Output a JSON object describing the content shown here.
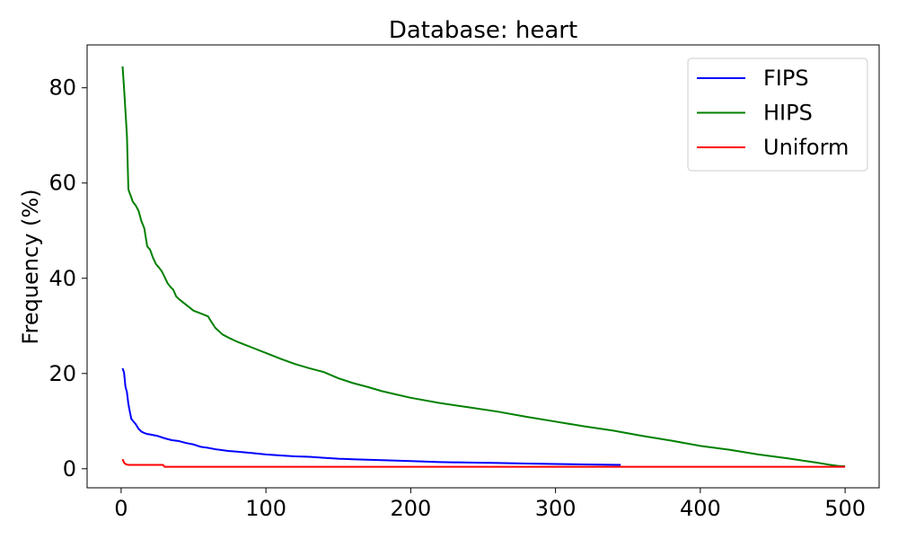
{
  "chart_data": {
    "type": "line",
    "title": "Database: heart",
    "xlabel": "",
    "ylabel": "Frequency (%)",
    "xlim": [
      -23.5,
      523.5
    ],
    "ylim": [
      -4,
      89
    ],
    "xticks": [
      0,
      100,
      200,
      300,
      400,
      500
    ],
    "yticks": [
      0,
      20,
      40,
      60,
      80
    ],
    "grid": false,
    "legend_position": "top-right",
    "series": [
      {
        "name": "FIPS",
        "color": "#0000ff",
        "x": [
          1,
          2,
          3,
          4,
          5,
          6,
          7,
          8,
          10,
          12,
          14,
          16,
          18,
          20,
          25,
          30,
          35,
          40,
          45,
          50,
          55,
          60,
          65,
          70,
          75,
          80,
          90,
          100,
          110,
          120,
          130,
          140,
          150,
          160,
          170,
          180,
          190,
          200,
          220,
          240,
          260,
          280,
          300,
          320,
          345
        ],
        "y": [
          21.1,
          20.2,
          17.2,
          16.1,
          13.6,
          12.0,
          10.5,
          10.1,
          9.4,
          8.4,
          7.8,
          7.5,
          7.3,
          7.2,
          6.9,
          6.4,
          6.0,
          5.8,
          5.4,
          5.1,
          4.6,
          4.4,
          4.1,
          3.9,
          3.7,
          3.6,
          3.3,
          3.0,
          2.8,
          2.6,
          2.5,
          2.3,
          2.1,
          2.0,
          1.9,
          1.8,
          1.7,
          1.6,
          1.4,
          1.3,
          1.2,
          1.1,
          1.0,
          0.9,
          0.8
        ]
      },
      {
        "name": "HIPS",
        "color": "#008000",
        "x": [
          1,
          2,
          3,
          4,
          5,
          6,
          7,
          8,
          10,
          12,
          14,
          16,
          18,
          20,
          22,
          24,
          26,
          28,
          30,
          32,
          34,
          36,
          38,
          40,
          45,
          50,
          55,
          60,
          62,
          65,
          70,
          75,
          80,
          90,
          100,
          110,
          120,
          130,
          140,
          150,
          160,
          170,
          180,
          190,
          200,
          220,
          240,
          260,
          280,
          300,
          320,
          340,
          360,
          380,
          400,
          420,
          440,
          460,
          480,
          490,
          495,
          500
        ],
        "y": [
          84.5,
          80.0,
          75.0,
          70.0,
          58.7,
          57.8,
          57.0,
          56.1,
          55.3,
          54.2,
          52.0,
          50.5,
          46.7,
          46.0,
          44.3,
          43.0,
          42.3,
          41.5,
          40.3,
          39.0,
          38.2,
          37.6,
          36.2,
          35.6,
          34.4,
          33.2,
          32.6,
          32.0,
          31.0,
          29.6,
          28.2,
          27.4,
          26.7,
          25.5,
          24.3,
          23.1,
          22.0,
          21.1,
          20.3,
          19.0,
          18.0,
          17.2,
          16.3,
          15.6,
          14.9,
          13.8,
          12.9,
          12.0,
          10.9,
          9.9,
          8.9,
          8.0,
          6.9,
          5.9,
          4.8,
          4.0,
          3.0,
          2.2,
          1.3,
          0.8,
          0.6,
          0.5
        ]
      },
      {
        "name": "Uniform",
        "color": "#ff0000",
        "x": [
          1,
          2,
          3,
          4,
          5,
          10,
          20,
          29,
          30,
          100,
          200,
          300,
          400,
          500
        ],
        "y": [
          2.0,
          1.3,
          1.0,
          0.9,
          0.8,
          0.8,
          0.8,
          0.8,
          0.4,
          0.4,
          0.4,
          0.4,
          0.4,
          0.4
        ]
      }
    ]
  }
}
